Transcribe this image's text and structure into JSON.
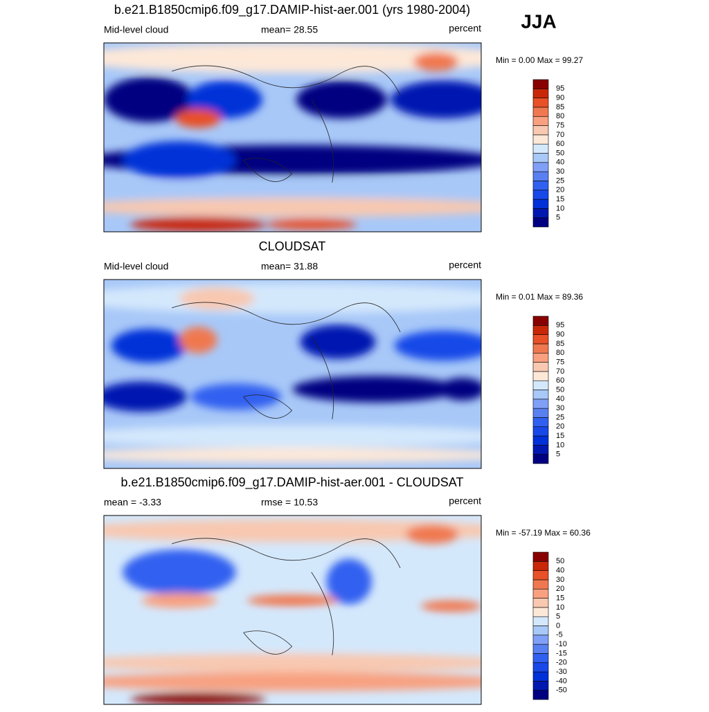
{
  "season": "JJA",
  "panels": [
    {
      "title": "b.e21.B1850cmip6.f09_g17.DAMIP-hist-aer.001 (yrs 1980-2004)",
      "left": "Mid-level cloud",
      "center": "mean=  28.55",
      "right": "percent",
      "minmax": "Min =   0.00 Max =  99.27",
      "colorbar": {
        "levels": [
          5,
          10,
          15,
          20,
          25,
          30,
          40,
          50,
          60,
          70,
          75,
          80,
          85,
          90,
          95
        ]
      }
    },
    {
      "title": "CLOUDSAT",
      "left": "Mid-level cloud",
      "center": "mean=  31.88",
      "right": "percent",
      "minmax": "Min =   0.01 Max =  89.36",
      "colorbar": {
        "levels": [
          5,
          10,
          15,
          20,
          25,
          30,
          40,
          50,
          60,
          70,
          75,
          80,
          85,
          90,
          95
        ]
      }
    },
    {
      "title": "b.e21.B1850cmip6.f09_g17.DAMIP-hist-aer.001 - CLOUDSAT",
      "left": "mean =  -3.33",
      "center": "rmse =  10.53",
      "right": "percent",
      "minmax": "Min = -57.19 Max =  60.36",
      "colorbar": {
        "levels": [
          -50,
          -40,
          -30,
          -20,
          -15,
          -10,
          -5,
          0,
          5,
          10,
          15,
          20,
          30,
          40,
          50
        ]
      }
    }
  ],
  "colors": [
    "#000080",
    "#0018b0",
    "#0030d8",
    "#1848e8",
    "#3060f0",
    "#5880f0",
    "#80a0f8",
    "#a8c8f8",
    "#d4e8fc",
    "#fde8d8",
    "#f8c8b0",
    "#f8a080",
    "#f07850",
    "#e85028",
    "#c82808",
    "#880000"
  ]
}
